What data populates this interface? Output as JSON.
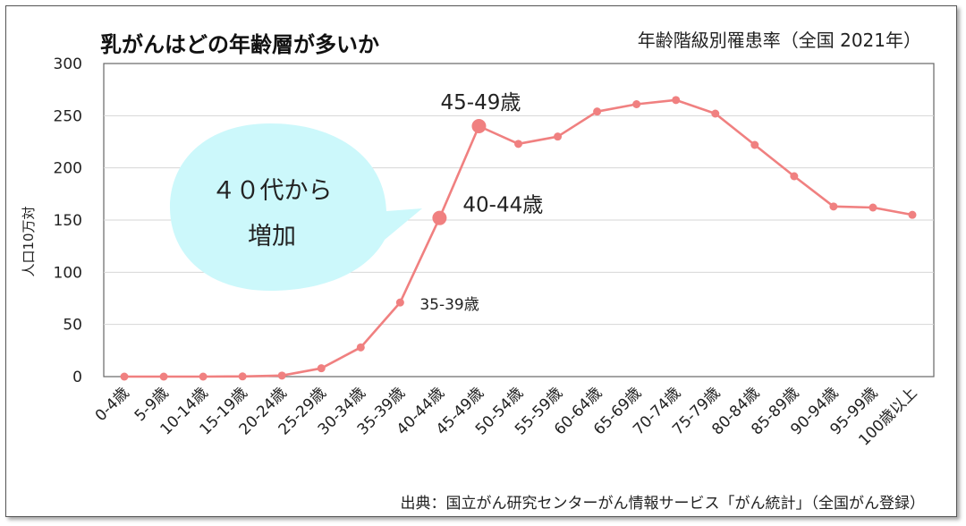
{
  "chart_data": {
    "type": "line",
    "title": "乳がんはどの年齢層が多いか",
    "subtitle": "年齢階級別罹患率（全国 2021年）",
    "ylabel": "人口10万対",
    "xlabel": "",
    "ylim": [
      0,
      300
    ],
    "yticks": [
      0,
      50,
      100,
      150,
      200,
      250,
      300
    ],
    "grid": true,
    "categories": [
      "0-4歳",
      "5-9歳",
      "10-14歳",
      "15-19歳",
      "20-24歳",
      "25-29歳",
      "30-34歳",
      "35-39歳",
      "40-44歳",
      "45-49歳",
      "50-54歳",
      "55-59歳",
      "60-64歳",
      "65-69歳",
      "70-74歳",
      "75-79歳",
      "80-84歳",
      "85-89歳",
      "90-94歳",
      "95-99歳",
      "100歳以上"
    ],
    "series": [
      {
        "name": "年齢階級別罹患率",
        "color": "#f08080",
        "values": [
          0,
          0,
          0,
          0.2,
          1,
          8,
          28,
          71,
          152,
          240,
          223,
          230,
          254,
          261,
          265,
          252,
          222,
          192,
          163,
          162,
          155
        ]
      }
    ],
    "annotations": [
      {
        "label": "35-39歳",
        "category_index": 7,
        "size": "small"
      },
      {
        "label": "40-44歳",
        "category_index": 8,
        "size": "big"
      },
      {
        "label": "45-49歳",
        "category_index": 9,
        "size": "big"
      }
    ],
    "highlight_indices": [
      8,
      9
    ],
    "callout": {
      "line1": "４０代から",
      "line2": "増加",
      "color": "#ccf8fb"
    },
    "source": "出典：国立がん研究センターがん情報サービス「がん統計」（全国がん登録）"
  }
}
